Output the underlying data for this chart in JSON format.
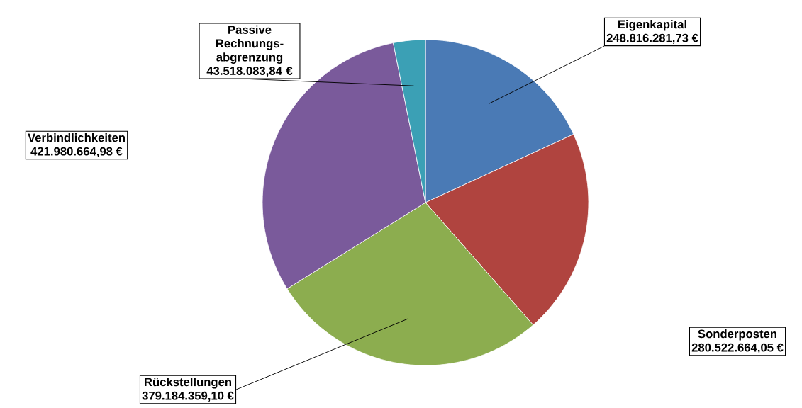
{
  "chart_data": {
    "type": "pie",
    "categories": [
      "Eigenkapital",
      "Sonderposten",
      "Rückstellungen",
      "Verbindlichkeiten",
      "Passive Rechnungs-abgrenzung"
    ],
    "values": [
      248816281.73,
      280522664.05,
      379184359.1,
      421980664.98,
      43518083.84
    ],
    "value_labels": [
      "248.816.281,73 €",
      "280.522.664,05 €",
      "379.184.359,10 €",
      "421.980.664,98 €",
      "43.518.083,84 €"
    ],
    "colors": [
      "#4a7ab5",
      "#b0443f",
      "#8cad4f",
      "#7a5a9b",
      "#3ba0b5"
    ]
  }
}
